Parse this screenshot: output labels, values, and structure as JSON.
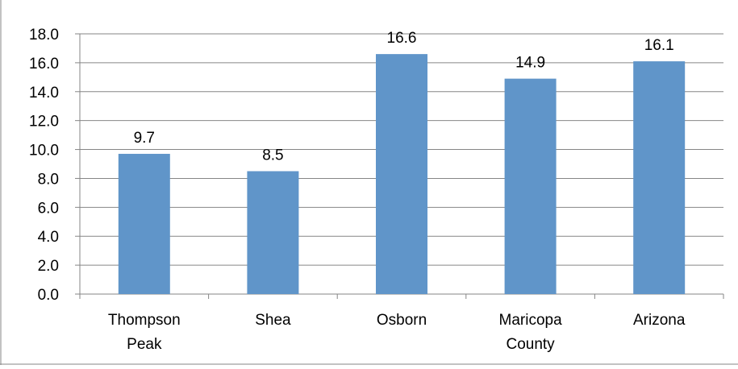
{
  "chart_data": {
    "type": "bar",
    "categories": [
      "Thompson Peak",
      "Shea",
      "Osborn",
      "Maricopa County",
      "Arizona"
    ],
    "category_lines": [
      [
        "Thompson",
        "Peak"
      ],
      [
        "Shea"
      ],
      [
        "Osborn"
      ],
      [
        "Maricopa",
        "County"
      ],
      [
        "Arizona"
      ]
    ],
    "values": [
      9.7,
      8.5,
      16.6,
      14.9,
      16.1
    ],
    "value_labels": [
      "9.7",
      "8.5",
      "16.6",
      "14.9",
      "16.1"
    ],
    "y_ticks": [
      "0.0",
      "2.0",
      "4.0",
      "6.0",
      "8.0",
      "10.0",
      "12.0",
      "14.0",
      "16.0",
      "18.0"
    ],
    "ylim": [
      0,
      18
    ],
    "grid": true,
    "legend": "none",
    "bar_color": "#6095C9",
    "grid_color": "#868686"
  }
}
